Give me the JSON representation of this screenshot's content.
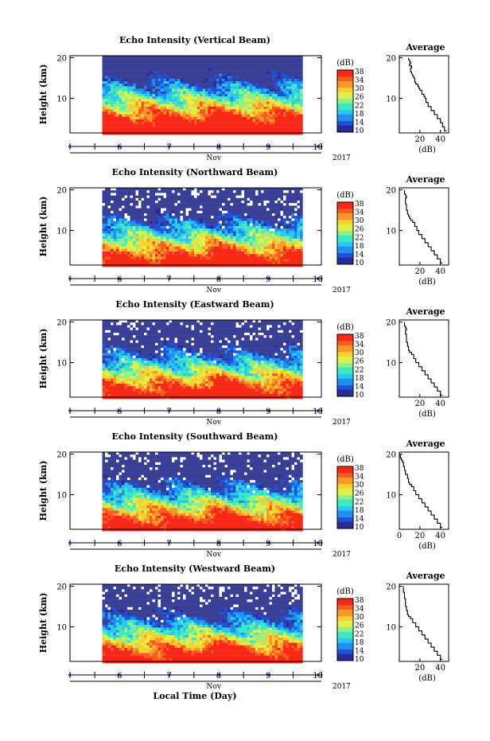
{
  "chart_data": [
    {
      "type": "heatmap",
      "title": "Echo Intensity (Vertical Beam)",
      "ylabel": "Height (km)",
      "yticks": [
        "20",
        "10"
      ],
      "ylim": [
        1.5,
        20.5
      ],
      "xticks": [
        "6",
        "7",
        "8",
        "9",
        "10"
      ],
      "xlim": [
        5.0,
        10.07
      ],
      "xlabel": "Nov",
      "year": "2017",
      "data_span_days": [
        5.65,
        9.65
      ],
      "colorbar_label": "(dB)",
      "colorbar_ticks": [
        "38",
        "34",
        "30",
        "26",
        "22",
        "18",
        "14",
        "10"
      ],
      "colorbar_range_db": [
        10,
        38
      ],
      "white_gaps": "none"
    },
    {
      "type": "line",
      "title": "Average",
      "xlabel": "(dB)",
      "xticks": [
        "20",
        "40"
      ],
      "yticks": [
        "20",
        "10"
      ],
      "ylim": [
        1.5,
        20.5
      ],
      "x": [
        46,
        44,
        42,
        40,
        37,
        34,
        31,
        28,
        26,
        25,
        24,
        22,
        20,
        19,
        18,
        16,
        15,
        14,
        13,
        12,
        11,
        11,
        12,
        10,
        11,
        10,
        9
      ],
      "y": [
        2,
        3,
        4,
        5,
        6,
        7,
        8,
        9,
        10,
        10.5,
        11,
        12,
        12.5,
        13,
        13.5,
        14,
        15,
        15.5,
        16,
        16.5,
        17,
        17.5,
        18,
        18.5,
        19,
        19.5,
        20
      ]
    },
    {
      "type": "heatmap",
      "title": "Echo Intensity (Northward Beam)",
      "ylabel": "Height (km)",
      "yticks": [
        "20",
        "10"
      ],
      "ylim": [
        1.5,
        20.5
      ],
      "xticks": [
        "6",
        "7",
        "8",
        "9",
        "10"
      ],
      "xlim": [
        5.0,
        10.07
      ],
      "xlabel": "Nov",
      "year": "2017",
      "data_span_days": [
        5.65,
        9.65
      ],
      "colorbar_label": "(dB)",
      "colorbar_ticks": [
        "38",
        "34",
        "30",
        "26",
        "22",
        "18",
        "14",
        "10"
      ],
      "colorbar_range_db": [
        10,
        38
      ],
      "white_gaps": "upper levels"
    },
    {
      "type": "line",
      "title": "Average",
      "xlabel": "(dB)",
      "xticks": [
        "20",
        "40"
      ],
      "yticks": [
        "20",
        "10"
      ],
      "ylim": [
        1.5,
        20.5
      ],
      "x": [
        42,
        40,
        37,
        34,
        31,
        28,
        25,
        22,
        19,
        17,
        15,
        13,
        11,
        10,
        9,
        8,
        7,
        7,
        6,
        6,
        7,
        6,
        5
      ],
      "y": [
        2,
        3,
        4,
        5,
        6,
        7,
        8,
        9,
        10,
        11,
        12,
        12.5,
        13,
        13.5,
        14,
        15,
        16,
        16.5,
        17,
        18,
        18.5,
        19,
        20
      ]
    },
    {
      "type": "heatmap",
      "title": "Echo Intensity (Eastward Beam)",
      "ylabel": "Height (km)",
      "yticks": [
        "20",
        "10"
      ],
      "ylim": [
        1.5,
        20.5
      ],
      "xticks": [
        "6",
        "7",
        "8",
        "9",
        "10"
      ],
      "xlim": [
        5.0,
        10.07
      ],
      "xlabel": "Nov",
      "year": "2017",
      "data_span_days": [
        5.65,
        9.65
      ],
      "colorbar_label": "(dB)",
      "colorbar_ticks": [
        "38",
        "34",
        "30",
        "26",
        "22",
        "18",
        "14",
        "10"
      ],
      "colorbar_range_db": [
        10,
        38
      ],
      "white_gaps": "upper levels"
    },
    {
      "type": "line",
      "title": "Average",
      "xlabel": "(dB)",
      "xticks": [
        "20",
        "40"
      ],
      "yticks": [
        "20",
        "10"
      ],
      "ylim": [
        1.5,
        20.5
      ],
      "x": [
        42,
        40,
        37,
        34,
        31,
        28,
        25,
        22,
        19,
        16,
        14,
        12,
        10,
        9,
        8,
        7,
        7,
        6,
        7,
        6,
        5
      ],
      "y": [
        2,
        3,
        4,
        5,
        6,
        7,
        8,
        9,
        10,
        11,
        12,
        12.5,
        13,
        14,
        15,
        16,
        17,
        18,
        18.5,
        19,
        20
      ]
    },
    {
      "type": "heatmap",
      "title": "Echo Intensity (Southward Beam)",
      "ylabel": "Height (km)",
      "yticks": [
        "20",
        "10"
      ],
      "ylim": [
        1.5,
        20.5
      ],
      "xticks": [
        "6",
        "7",
        "8",
        "9",
        "10"
      ],
      "xlim": [
        5.0,
        10.07
      ],
      "xlabel": "Nov",
      "year": "2017",
      "data_span_days": [
        5.65,
        9.65
      ],
      "colorbar_label": "(dB)",
      "colorbar_ticks": [
        "38",
        "34",
        "30",
        "26",
        "22",
        "18",
        "14",
        "10"
      ],
      "colorbar_range_db": [
        10,
        38
      ],
      "white_gaps": "upper levels"
    },
    {
      "type": "line",
      "title": "Average",
      "xlabel": "(dB)",
      "xticks": [
        "0",
        "20",
        "40"
      ],
      "yticks": [
        "20",
        "10"
      ],
      "ylim": [
        1.5,
        20.5
      ],
      "x": [
        42,
        40,
        37,
        34,
        31,
        28,
        25,
        22,
        19,
        16,
        14,
        12,
        10,
        9,
        8,
        6,
        5,
        4,
        3,
        2,
        1
      ],
      "y": [
        2,
        3,
        4,
        5,
        6,
        7,
        8,
        9,
        10,
        11,
        12,
        12.5,
        13,
        14,
        15,
        16,
        17,
        18,
        18.5,
        19,
        20
      ]
    },
    {
      "type": "heatmap",
      "title": "Echo Intensity (Westward Beam)",
      "ylabel": "Height (km)",
      "yticks": [
        "20",
        "10"
      ],
      "ylim": [
        1.5,
        20.5
      ],
      "xticks": [
        "6",
        "7",
        "8",
        "9",
        "10"
      ],
      "xlim": [
        5.0,
        10.07
      ],
      "xlabel": "Nov",
      "year": "2017",
      "data_span_days": [
        5.65,
        9.65
      ],
      "colorbar_label": "(dB)",
      "colorbar_ticks": [
        "38",
        "34",
        "30",
        "26",
        "22",
        "18",
        "14",
        "10"
      ],
      "colorbar_range_db": [
        10,
        38
      ],
      "white_gaps": "upper levels"
    },
    {
      "type": "line",
      "title": "Average",
      "xlabel": "(dB)",
      "xticks": [
        "20",
        "40"
      ],
      "yticks": [
        "20",
        "10"
      ],
      "ylim": [
        1.5,
        20.5
      ],
      "x": [
        42,
        40,
        37,
        34,
        31,
        28,
        25,
        22,
        19,
        16,
        13,
        11,
        9,
        8,
        7,
        6,
        6,
        5,
        5,
        4,
        4
      ],
      "y": [
        2,
        3,
        4,
        5,
        6,
        7,
        8,
        9,
        10,
        11,
        12,
        12.5,
        13,
        14,
        15,
        16,
        17,
        18,
        18.5,
        19,
        20
      ]
    }
  ],
  "figure": {
    "footer_xlabel": "Local Time (Day)"
  },
  "colors": {
    "colormap": [
      "#2a2a9a",
      "#1f50d8",
      "#1f8ff0",
      "#29c8f0",
      "#3ee8c0",
      "#8ef08a",
      "#e0f048",
      "#f8d030",
      "#f89828",
      "#f85a20",
      "#f82818"
    ],
    "background_noise": "#3a3f96",
    "tick_marker": "#1a2aa0"
  }
}
